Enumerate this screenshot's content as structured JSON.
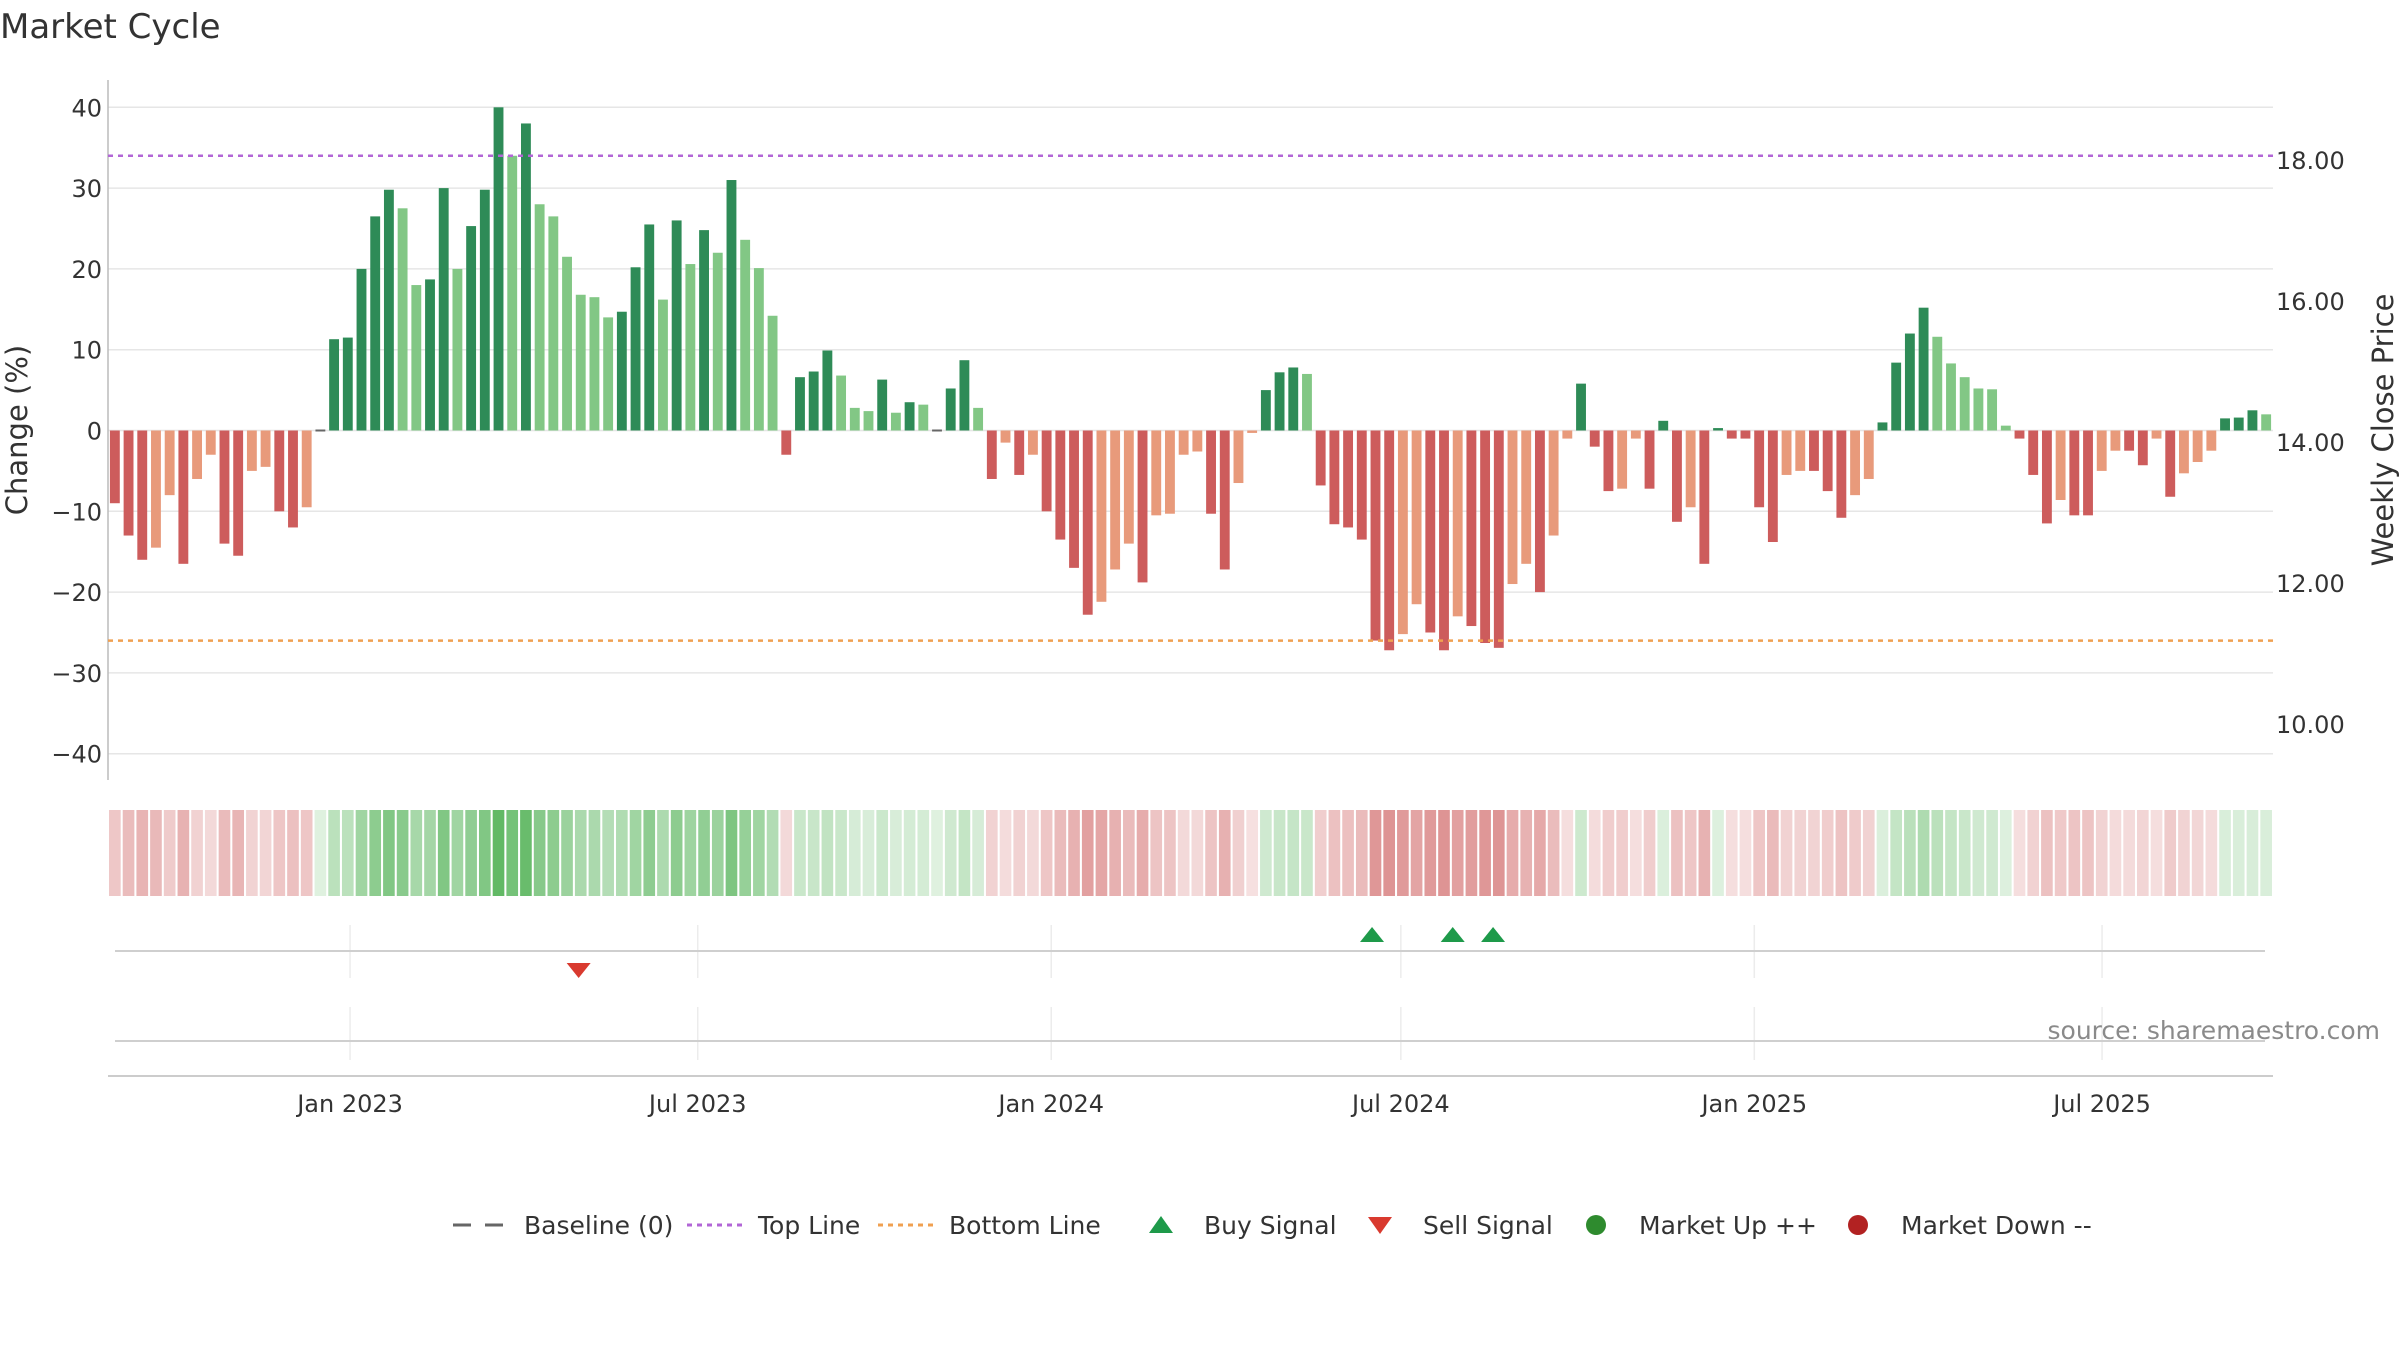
{
  "chart_data": {
    "type": "bar",
    "title": "Market Cycle",
    "ylabel_left": "Change (%)",
    "ylabel_right": "Weekly Close Price",
    "ylim": [
      -43,
      43
    ],
    "y_ticks": [
      "40",
      "30",
      "20",
      "10",
      "0",
      "−10",
      "−20",
      "−30",
      "−40"
    ],
    "y_tick_values": [
      40,
      30,
      20,
      10,
      0,
      -10,
      -20,
      -30,
      -40
    ],
    "y2_ticks": [
      "18.00",
      "16.00",
      "14.00",
      "12.00",
      "10.00"
    ],
    "y2_tick_values": [
      18,
      16,
      14,
      12,
      10
    ],
    "x_ticks": [
      "Jan 2023",
      "Jul 2023",
      "Jan 2024",
      "Jul 2024",
      "Jan 2025",
      "Jul 2025"
    ],
    "x_tick_dates": [
      "2023-01-01",
      "2023-07-01",
      "2024-01-01",
      "2024-07-01",
      "2025-01-01",
      "2025-07-01"
    ],
    "date_range": [
      "2022-08-28",
      "2025-09-28"
    ],
    "top_line": 34,
    "bottom_line": -26,
    "change_pct": [
      -9,
      -13,
      -16,
      -14.5,
      -8,
      -16.5,
      -6,
      -3,
      -14,
      -15.5,
      -5,
      -4.5,
      -10,
      -12,
      -9.5,
      0,
      11.3,
      11.5,
      20,
      26.5,
      29.8,
      27.5,
      18,
      18.7,
      30,
      20,
      25.3,
      29.8,
      40,
      34,
      38,
      28,
      26.5,
      21.5,
      16.8,
      16.5,
      14,
      14.7,
      20.2,
      25.5,
      16.2,
      26,
      20.6,
      24.8,
      22,
      31,
      23.6,
      20.1,
      14.2,
      -3,
      6.6,
      7.3,
      9.9,
      6.8,
      2.8,
      2.4,
      6.3,
      2.2,
      3.5,
      3.2,
      0,
      5.2,
      8.7,
      2.8,
      -6,
      -1.5,
      -5.5,
      -3,
      -10,
      -13.5,
      -17,
      -22.8,
      -21.2,
      -17.2,
      -14,
      -18.8,
      -10.5,
      -10.3,
      -3,
      -2.6,
      -10.3,
      -17.2,
      -6.5,
      -0.3,
      5,
      7.2,
      7.8,
      7,
      -6.8,
      -11.6,
      -12,
      -13.5,
      -26,
      -27.2,
      -25.2,
      -21.5,
      -25,
      -27.2,
      -23,
      -24.2,
      -26.3,
      -26.9,
      -19,
      -16.5,
      -20,
      -13,
      -1,
      5.8,
      -2,
      -7.5,
      -7.2,
      -1,
      -7.2,
      1.2,
      -11.3,
      -9.5,
      -16.5,
      0.3,
      -1,
      -1,
      -9.5,
      -13.8,
      -5.5,
      -5,
      -5,
      -7.5,
      -10.8,
      -8,
      -6,
      1,
      8.4,
      12,
      15.2,
      11.6,
      8.3,
      6.6,
      5.2,
      5.1,
      0.6,
      -1,
      -5.5,
      -11.5,
      -8.6,
      -10.5,
      -10.5,
      -5,
      -2.5,
      -2.5,
      -4.3,
      -1,
      -8.2,
      -5.3,
      -3.9,
      -2.5,
      1.5,
      1.6,
      2.5,
      2
    ],
    "bar_colors": {
      "up_strong": "#2e8b57",
      "up_light": "#82c785",
      "down_strong": "#cd5c5c",
      "down_light": "#e89a7b"
    },
    "band_colors": {
      "up": [
        76,
        175,
        80
      ],
      "down": [
        205,
        92,
        92
      ]
    },
    "buy_signal_dates": [
      "2024-06-16",
      "2024-07-28",
      "2024-08-18"
    ],
    "sell_signal_dates": [
      "2023-04-30"
    ],
    "legend": [
      {
        "label": "Baseline (0)",
        "icon": "dash-line",
        "color": "#666666"
      },
      {
        "label": "Top Line",
        "icon": "dotted-line",
        "color": "#b266d6"
      },
      {
        "label": "Bottom Line",
        "icon": "dotted-line",
        "color": "#f0a050"
      },
      {
        "label": "Buy Signal",
        "icon": "triangle-up",
        "color": "#1e9a4a"
      },
      {
        "label": "Sell Signal",
        "icon": "triangle-down",
        "color": "#d93a2f"
      },
      {
        "label": "Market Up ++",
        "icon": "dot",
        "color": "#2e8b2e"
      },
      {
        "label": "Market Down --",
        "icon": "dot",
        "color": "#b22222"
      }
    ],
    "legend_placement": "bottom",
    "grid": true,
    "source": "source: sharemaestro.com"
  }
}
